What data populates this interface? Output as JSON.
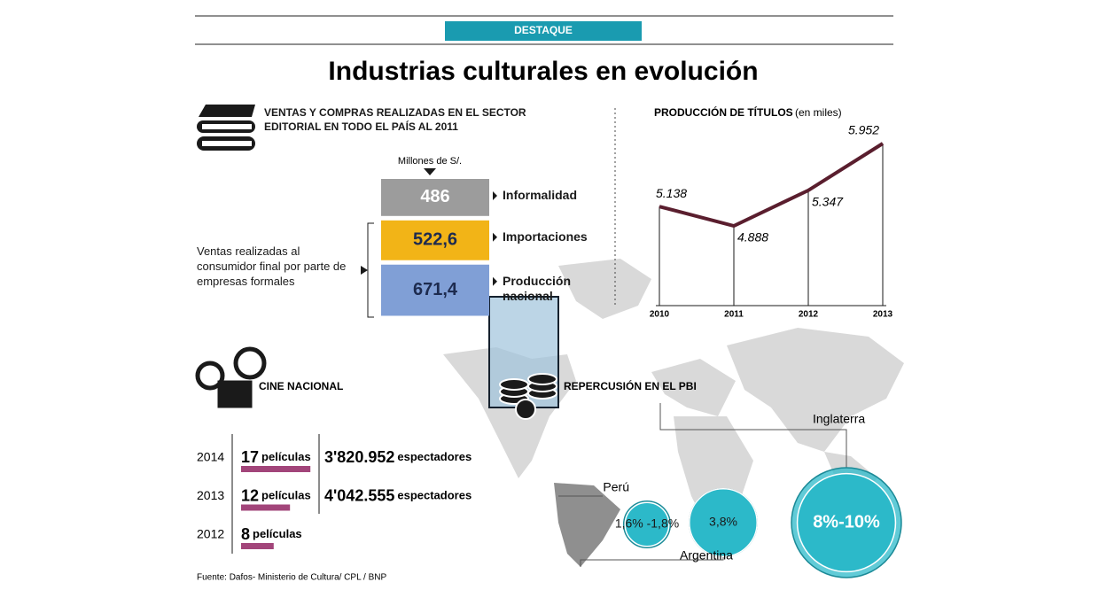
{
  "badge": "DESTAQUE",
  "title": "Industrias culturales en evolución",
  "chart_data": [
    {
      "type": "block",
      "title": "VENTAS Y COMPRAS REALIZADAS EN EL SECTOR EDITORIAL EN TODO EL PAÍS AL 2011",
      "unit_label": "Millones de S/.",
      "categories": [
        "Informalidad",
        "Importaciones",
        "Producción nacional"
      ],
      "values": [
        486,
        522.6,
        671.4
      ],
      "value_labels": [
        "486",
        "522,6",
        "671,4"
      ],
      "colors": [
        "#9c9c9c",
        "#f2b417",
        "#809fd6"
      ],
      "label_colors": [
        "#ffffff",
        "#1d2b4f",
        "#1d2b4f"
      ],
      "bracket_label": "Ventas realizadas al consumidor final por parte de empresas formales"
    },
    {
      "type": "line",
      "title": "PRODUCCIÓN DE TÍTULOS",
      "subtitle": "(en miles)",
      "x": [
        2010,
        2011,
        2012,
        2013
      ],
      "values": [
        5138,
        4888,
        5347,
        5952
      ],
      "value_labels": [
        "5.138",
        "4.888",
        "5.347",
        "5.952"
      ],
      "color": "#5a1e2e"
    },
    {
      "type": "hbar",
      "title": "CINE NACIONAL",
      "categories": [
        "2014",
        "2013",
        "2012"
      ],
      "values": [
        17,
        12,
        8
      ],
      "unit": "películas",
      "color": "#a2457a",
      "spectators": [
        3820952,
        4042555,
        null
      ],
      "spectator_labels": [
        "3'820.952",
        "4'042.555",
        null
      ],
      "spectator_unit": "espectadores"
    },
    {
      "type": "bubble",
      "title": "REPERCUSIÓN EN EL PBI",
      "categories": [
        "Perú",
        "Argentina",
        "Inglaterra"
      ],
      "low": [
        1.6,
        3.8,
        8
      ],
      "high": [
        1.8,
        3.8,
        10
      ],
      "value_labels": [
        "1,6% -1,8%",
        "3,8%",
        "8%-10%"
      ],
      "color": "#2cb9c9"
    }
  ],
  "source": "Fuente: Dafos- Ministerio de Cultura/ CPL / BNP"
}
